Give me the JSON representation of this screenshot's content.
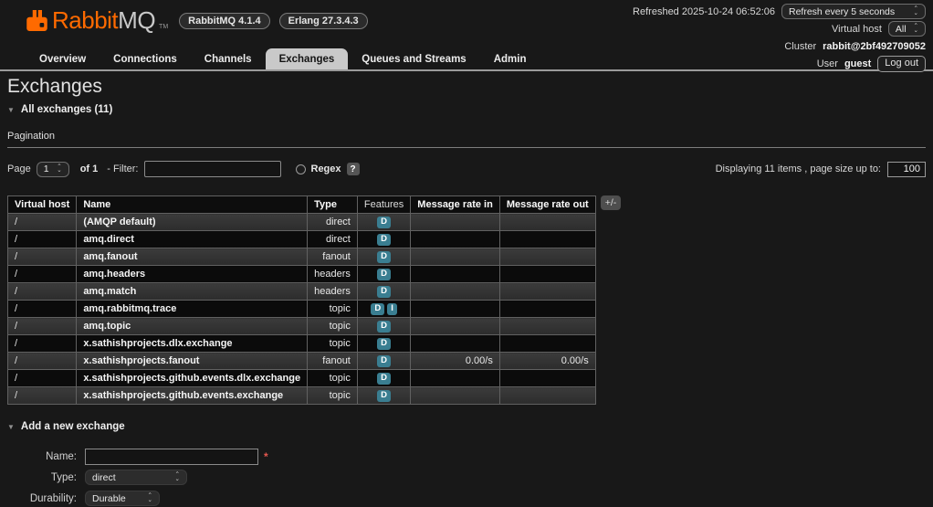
{
  "header": {
    "brand": {
      "rabbit": "Rabbit",
      "mq": "MQ",
      "tm": "TM"
    },
    "version_badges": [
      "RabbitMQ 4.1.4",
      "Erlang 27.3.4.3"
    ],
    "refreshed": "Refreshed 2025-10-24 06:52:06",
    "refresh_interval": "Refresh every 5 seconds",
    "virtual_host_label": "Virtual host",
    "virtual_host_value": "All",
    "cluster_label": "Cluster",
    "cluster_name": "rabbit@2bf492709052",
    "user_label": "User",
    "user_name": "guest",
    "logout": "Log out"
  },
  "tabs": [
    {
      "label": "Overview",
      "active": false
    },
    {
      "label": "Connections",
      "active": false
    },
    {
      "label": "Channels",
      "active": false
    },
    {
      "label": "Exchanges",
      "active": true
    },
    {
      "label": "Queues and Streams",
      "active": false
    },
    {
      "label": "Admin",
      "active": false
    }
  ],
  "page": {
    "title": "Exchanges",
    "all_exchanges_section": "All exchanges (11)",
    "pagination_heading": "Pagination",
    "page_label": "Page",
    "page_value": "1",
    "of_label": "of 1",
    "filter_label": "- Filter:",
    "filter_value": "",
    "regex_label": "Regex",
    "regex_help": "?",
    "displaying_text": "Displaying 11 items , page size up to:",
    "page_size": "100"
  },
  "table": {
    "columns": [
      "Virtual host",
      "Name",
      "Type",
      "Features",
      "Message rate in",
      "Message rate out"
    ],
    "column_toggle": "+/-",
    "rows": [
      {
        "vhost": "/",
        "name": "(AMQP default)",
        "type": "direct",
        "features": [
          "D"
        ],
        "rate_in": "",
        "rate_out": ""
      },
      {
        "vhost": "/",
        "name": "amq.direct",
        "type": "direct",
        "features": [
          "D"
        ],
        "rate_in": "",
        "rate_out": ""
      },
      {
        "vhost": "/",
        "name": "amq.fanout",
        "type": "fanout",
        "features": [
          "D"
        ],
        "rate_in": "",
        "rate_out": ""
      },
      {
        "vhost": "/",
        "name": "amq.headers",
        "type": "headers",
        "features": [
          "D"
        ],
        "rate_in": "",
        "rate_out": ""
      },
      {
        "vhost": "/",
        "name": "amq.match",
        "type": "headers",
        "features": [
          "D"
        ],
        "rate_in": "",
        "rate_out": ""
      },
      {
        "vhost": "/",
        "name": "amq.rabbitmq.trace",
        "type": "topic",
        "features": [
          "D",
          "I"
        ],
        "rate_in": "",
        "rate_out": ""
      },
      {
        "vhost": "/",
        "name": "amq.topic",
        "type": "topic",
        "features": [
          "D"
        ],
        "rate_in": "",
        "rate_out": ""
      },
      {
        "vhost": "/",
        "name": "x.sathishprojects.dlx.exchange",
        "type": "topic",
        "features": [
          "D"
        ],
        "rate_in": "",
        "rate_out": ""
      },
      {
        "vhost": "/",
        "name": "x.sathishprojects.fanout",
        "type": "fanout",
        "features": [
          "D"
        ],
        "rate_in": "0.00/s",
        "rate_out": "0.00/s"
      },
      {
        "vhost": "/",
        "name": "x.sathishprojects.github.events.dlx.exchange",
        "type": "topic",
        "features": [
          "D"
        ],
        "rate_in": "",
        "rate_out": ""
      },
      {
        "vhost": "/",
        "name": "x.sathishprojects.github.events.exchange",
        "type": "topic",
        "features": [
          "D"
        ],
        "rate_in": "",
        "rate_out": ""
      }
    ]
  },
  "add_exchange": {
    "section_title": "Add a new exchange",
    "name_label": "Name:",
    "name_value": "",
    "required_marker": "*",
    "type_label": "Type:",
    "type_value": "direct",
    "durability_label": "Durability:",
    "durability_value": "Durable"
  },
  "colors": {
    "accent_orange": "#ff6a00",
    "feature_badge": "#3a7e91",
    "active_tab_bg": "#c9c9c9"
  }
}
